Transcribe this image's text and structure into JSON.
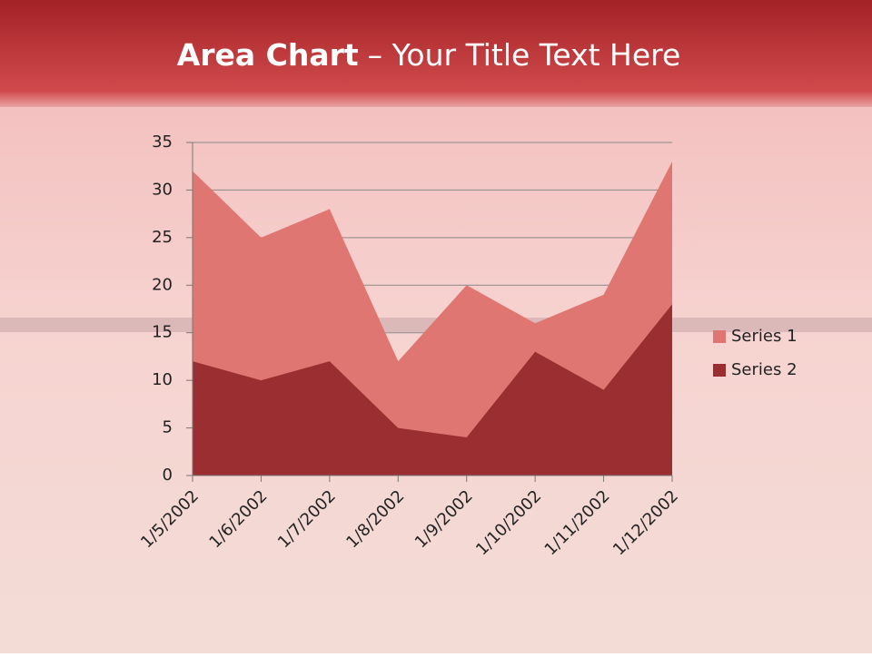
{
  "chart_data": {
    "type": "area",
    "title": {
      "bold": "Area Chart",
      "rest": "– Your Title Text Here"
    },
    "categories": [
      "1/5/2002",
      "1/6/2002",
      "1/7/2002",
      "1/8/2002",
      "1/9/2002",
      "1/10/2002",
      "1/11/2002",
      "1/12/2002"
    ],
    "series": [
      {
        "name": "Series 1",
        "color": "#e07672",
        "values": [
          32,
          25,
          28,
          12,
          20,
          16,
          19,
          33
        ]
      },
      {
        "name": "Series 2",
        "color": "#9a2e31",
        "values": [
          12,
          10,
          12,
          5,
          4,
          13,
          9,
          18
        ]
      }
    ],
    "ylim": [
      0,
      35
    ],
    "yticks": [
      0,
      5,
      10,
      15,
      20,
      25,
      30,
      35
    ],
    "grid": true,
    "legend": "right"
  }
}
